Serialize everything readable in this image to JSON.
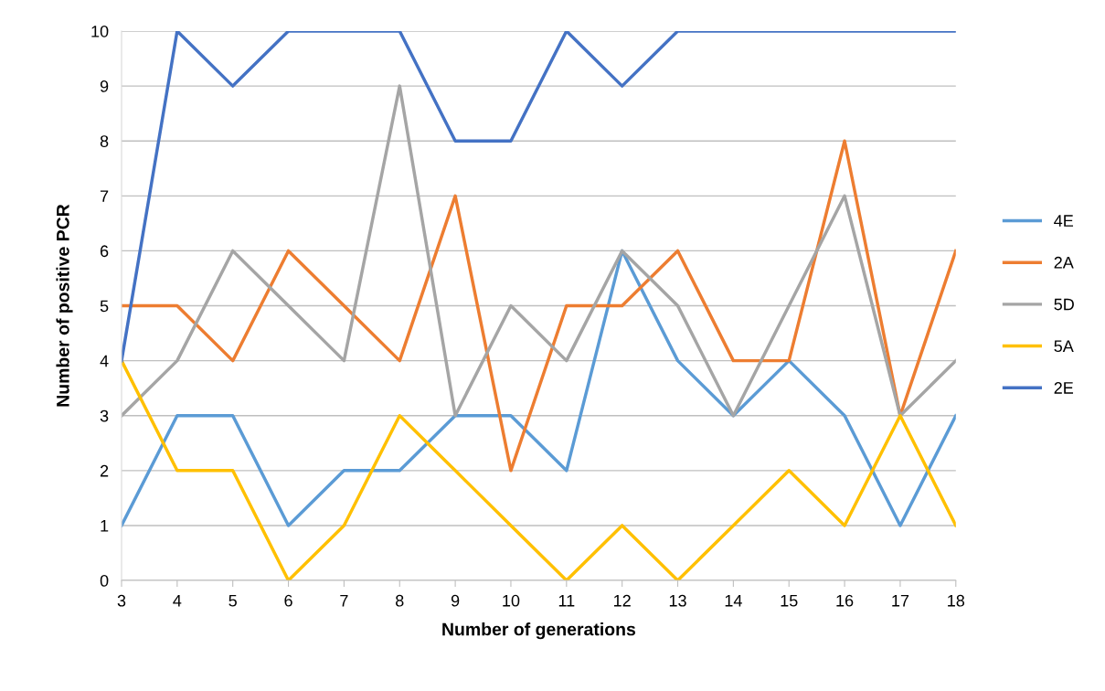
{
  "chart_data": {
    "type": "line",
    "xlabel": "Number of generations",
    "ylabel": "Number of positive PCR",
    "x": [
      3,
      4,
      5,
      6,
      7,
      8,
      9,
      10,
      11,
      12,
      13,
      14,
      15,
      16,
      17,
      18
    ],
    "xlim": [
      3,
      18
    ],
    "xticks": [
      3,
      4,
      5,
      6,
      7,
      8,
      9,
      10,
      11,
      12,
      13,
      14,
      15,
      16,
      17,
      18
    ],
    "ylim": [
      0,
      10
    ],
    "yticks": [
      0,
      1,
      2,
      3,
      4,
      5,
      6,
      7,
      8,
      9,
      10
    ],
    "grid": "y",
    "legend": "right",
    "marker": "none",
    "line_style": "solid",
    "series": [
      {
        "name": "4E",
        "color": "#5b9bd5",
        "values": [
          1,
          3,
          3,
          1,
          2,
          2,
          3,
          3,
          2,
          6,
          4,
          3,
          4,
          3,
          1,
          3
        ]
      },
      {
        "name": "2A",
        "color": "#ed7d31",
        "values": [
          5,
          5,
          4,
          6,
          5,
          4,
          7,
          2,
          5,
          5,
          6,
          4,
          4,
          8,
          3,
          6
        ]
      },
      {
        "name": "5D",
        "color": "#a5a5a5",
        "values": [
          3,
          4,
          6,
          5,
          4,
          9,
          3,
          5,
          4,
          6,
          5,
          3,
          5,
          7,
          3,
          4
        ]
      },
      {
        "name": "5A",
        "color": "#ffc000",
        "values": [
          4,
          2,
          2,
          0,
          1,
          3,
          2,
          1,
          0,
          1,
          0,
          1,
          2,
          1,
          3,
          1
        ]
      },
      {
        "name": "2E",
        "color": "#4472c4",
        "values": [
          4,
          10,
          9,
          10,
          10,
          10,
          8,
          8,
          10,
          9,
          10,
          10,
          10,
          10,
          10,
          10
        ]
      }
    ]
  }
}
